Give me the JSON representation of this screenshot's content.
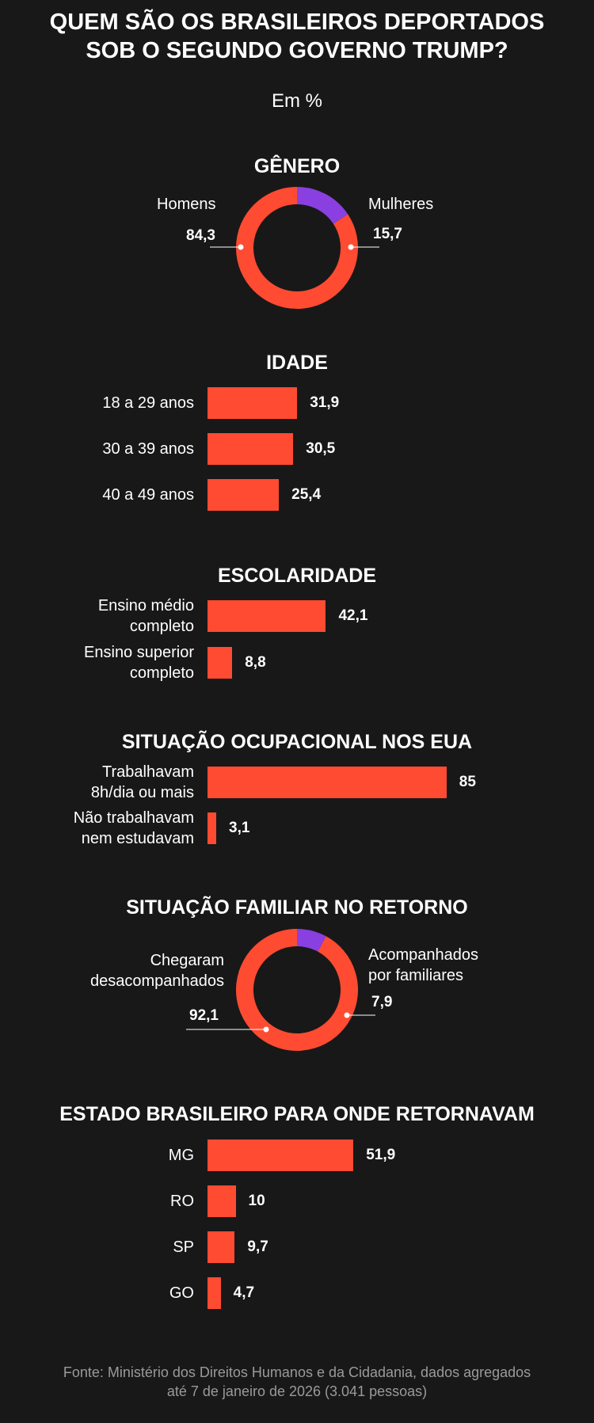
{
  "title_line1": "QUEM SÃO OS BRASILEIROS DEPORTADOS",
  "title_line2": "SOB O SEGUNDO GOVERNO TRUMP?",
  "subtitle": "Em %",
  "source_line1": "Fonte: Ministério dos Direitos Humanos e da Cidadania, dados agregados",
  "source_line2": "até 7 de janeiro de 2026 (3.041 pessoas)",
  "colors": {
    "background": "#181818",
    "primary": "#ff4b31",
    "secondary": "#8a3fe0",
    "text": "#ffffff",
    "muted": "#9a9a9a"
  },
  "chart_data": [
    {
      "type": "pie",
      "title": "GÊNERO",
      "slices": [
        {
          "label": "Homens",
          "value": 84.3,
          "display": "84,3",
          "color": "#ff4b31"
        },
        {
          "label": "Mulheres",
          "value": 15.7,
          "display": "15,7",
          "color": "#8a3fe0"
        }
      ]
    },
    {
      "type": "bar",
      "title": "IDADE",
      "categories": [
        "18 a 29 anos",
        "30 a 39 anos",
        "40 a 49 anos"
      ],
      "values": [
        31.9,
        30.5,
        25.4
      ],
      "display": [
        "31,9",
        "30,5",
        "25,4"
      ]
    },
    {
      "type": "bar",
      "title": "ESCOLARIDADE",
      "categories": [
        [
          "Ensino médio",
          "completo"
        ],
        [
          "Ensino superior",
          "completo"
        ]
      ],
      "values": [
        42.1,
        8.8
      ],
      "display": [
        "42,1",
        "8,8"
      ]
    },
    {
      "type": "bar",
      "title": "SITUAÇÃO OCUPACIONAL NOS EUA",
      "categories": [
        [
          "Trabalhavam",
          "8h/dia ou mais"
        ],
        [
          "Não trabalhavam",
          "nem estudavam"
        ]
      ],
      "values": [
        85,
        3.1
      ],
      "display": [
        "85",
        "3,1"
      ]
    },
    {
      "type": "pie",
      "title": "SITUAÇÃO FAMILIAR  NO RETORNO",
      "slices": [
        {
          "label": [
            "Chegaram",
            "desacompanhados"
          ],
          "value": 92.1,
          "display": "92,1",
          "color": "#ff4b31"
        },
        {
          "label": [
            "Acompanhados",
            "por familiares"
          ],
          "value": 7.9,
          "display": "7,9",
          "color": "#8a3fe0"
        }
      ]
    },
    {
      "type": "bar",
      "title": "ESTADO BRASILEIRO PARA ONDE RETORNAVAM",
      "categories": [
        "MG",
        "RO",
        "SP",
        "GO"
      ],
      "values": [
        51.9,
        10,
        9.7,
        4.7
      ],
      "display": [
        "51,9",
        "10",
        "9,7",
        "4,7"
      ]
    }
  ]
}
